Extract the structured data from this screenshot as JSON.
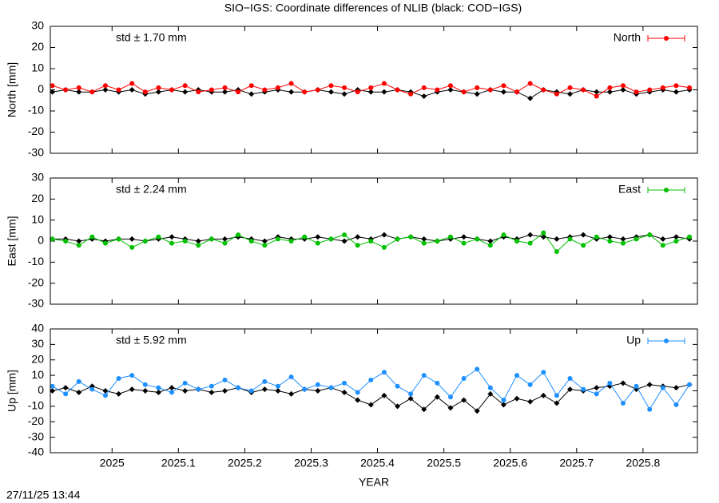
{
  "timestamp": "27/11/25 13:44",
  "chart_data": [
    {
      "type": "line",
      "title": "SIO−IGS: Coordinate differences of NLIB (black: COD−IGS)",
      "ylabel": "North [mm]",
      "annotation": "std ± 1.70 mm",
      "legend": "top right",
      "x": [
        2024.91,
        2024.93,
        2024.95,
        2024.97,
        2024.99,
        2025.01,
        2025.03,
        2025.05,
        2025.07,
        2025.09,
        2025.11,
        2025.13,
        2025.15,
        2025.17,
        2025.19,
        2025.21,
        2025.23,
        2025.25,
        2025.27,
        2025.29,
        2025.31,
        2025.33,
        2025.35,
        2025.37,
        2025.39,
        2025.41,
        2025.43,
        2025.45,
        2025.47,
        2025.49,
        2025.51,
        2025.53,
        2025.55,
        2025.57,
        2025.59,
        2025.61,
        2025.63,
        2025.65,
        2025.67,
        2025.69,
        2025.71,
        2025.73,
        2025.75,
        2025.77,
        2025.79,
        2025.81,
        2025.83,
        2025.85,
        2025.87
      ],
      "xlim": [
        2024.907,
        2025.882
      ],
      "xticks": [
        2025,
        2025.1,
        2025.2,
        2025.3,
        2025.4,
        2025.5,
        2025.6,
        2025.7,
        2025.8
      ],
      "ylim": [
        -30,
        30
      ],
      "yticks": [
        -30,
        -20,
        -10,
        0,
        10,
        20,
        30
      ],
      "series": [
        {
          "color": "#000000",
          "values": [
            -1,
            0,
            -1,
            -1,
            0,
            -1,
            0,
            -2,
            -1,
            0,
            -1,
            0,
            -1,
            -1,
            0,
            -2,
            -1,
            0,
            -1,
            -1,
            0,
            -1,
            -2,
            0,
            -1,
            -1,
            0,
            -1,
            -3,
            -1,
            0,
            -1,
            -2,
            0,
            -1,
            -1,
            -4,
            0,
            -1,
            -2,
            0,
            -1,
            -1,
            0,
            -2,
            -1,
            0,
            -1,
            0
          ]
        },
        {
          "name": "North",
          "color": "#ff0000",
          "values": [
            2,
            0,
            1,
            -1,
            2,
            0,
            3,
            -1,
            1,
            0,
            2,
            -1,
            0,
            1,
            -1,
            2,
            0,
            1,
            3,
            -1,
            0,
            2,
            1,
            -1,
            1,
            3,
            0,
            -2,
            1,
            0,
            2,
            -1,
            1,
            0,
            2,
            -1,
            3,
            0,
            -2,
            1,
            0,
            -3,
            1,
            2,
            -1,
            0,
            1,
            2,
            1
          ]
        }
      ]
    },
    {
      "type": "line",
      "ylabel": "East [mm]",
      "annotation": "std ± 2.24 mm",
      "legend": "top right",
      "x": [
        2024.91,
        2024.93,
        2024.95,
        2024.97,
        2024.99,
        2025.01,
        2025.03,
        2025.05,
        2025.07,
        2025.09,
        2025.11,
        2025.13,
        2025.15,
        2025.17,
        2025.19,
        2025.21,
        2025.23,
        2025.25,
        2025.27,
        2025.29,
        2025.31,
        2025.33,
        2025.35,
        2025.37,
        2025.39,
        2025.41,
        2025.43,
        2025.45,
        2025.47,
        2025.49,
        2025.51,
        2025.53,
        2025.55,
        2025.57,
        2025.59,
        2025.61,
        2025.63,
        2025.65,
        2025.67,
        2025.69,
        2025.71,
        2025.73,
        2025.75,
        2025.77,
        2025.79,
        2025.81,
        2025.83,
        2025.85,
        2025.87
      ],
      "xlim": [
        2024.907,
        2025.882
      ],
      "xticks": [
        2025,
        2025.1,
        2025.2,
        2025.3,
        2025.4,
        2025.5,
        2025.6,
        2025.7,
        2025.8
      ],
      "ylim": [
        -30,
        30
      ],
      "yticks": [
        -30,
        -20,
        -10,
        0,
        10,
        20,
        30
      ],
      "series": [
        {
          "color": "#000000",
          "values": [
            1,
            1,
            0,
            1,
            0,
            1,
            1,
            0,
            1,
            2,
            1,
            0,
            1,
            1,
            2,
            1,
            0,
            2,
            1,
            1,
            2,
            1,
            0,
            2,
            1,
            3,
            1,
            2,
            1,
            0,
            1,
            2,
            1,
            0,
            2,
            1,
            3,
            2,
            1,
            2,
            3,
            1,
            2,
            1,
            2,
            3,
            1,
            2,
            1
          ]
        },
        {
          "name": "East",
          "color": "#00c000",
          "values": [
            1,
            0,
            -2,
            2,
            -1,
            1,
            -3,
            0,
            2,
            -1,
            0,
            -2,
            1,
            -1,
            3,
            0,
            -2,
            1,
            0,
            2,
            -1,
            1,
            3,
            -2,
            0,
            -3,
            1,
            2,
            -1,
            0,
            2,
            -1,
            1,
            -2,
            3,
            0,
            -1,
            4,
            -5,
            1,
            -2,
            2,
            0,
            -1,
            1,
            3,
            -2,
            0,
            2
          ]
        }
      ]
    },
    {
      "type": "line",
      "ylabel": "Up [mm]",
      "xlabel": "YEAR",
      "annotation": "std ± 5.92 mm",
      "legend": "top right",
      "x": [
        2024.91,
        2024.93,
        2024.95,
        2024.97,
        2024.99,
        2025.01,
        2025.03,
        2025.05,
        2025.07,
        2025.09,
        2025.11,
        2025.13,
        2025.15,
        2025.17,
        2025.19,
        2025.21,
        2025.23,
        2025.25,
        2025.27,
        2025.29,
        2025.31,
        2025.33,
        2025.35,
        2025.37,
        2025.39,
        2025.41,
        2025.43,
        2025.45,
        2025.47,
        2025.49,
        2025.51,
        2025.53,
        2025.55,
        2025.57,
        2025.59,
        2025.61,
        2025.63,
        2025.65,
        2025.67,
        2025.69,
        2025.71,
        2025.73,
        2025.75,
        2025.77,
        2025.79,
        2025.81,
        2025.83,
        2025.85,
        2025.87
      ],
      "xlim": [
        2024.907,
        2025.882
      ],
      "xticks": [
        2025,
        2025.1,
        2025.2,
        2025.3,
        2025.4,
        2025.5,
        2025.6,
        2025.7,
        2025.8
      ],
      "ylim": [
        -40,
        40
      ],
      "yticks": [
        -40,
        -30,
        -20,
        -10,
        0,
        10,
        20,
        30,
        40
      ],
      "series": [
        {
          "color": "#000000",
          "values": [
            0,
            2,
            -1,
            3,
            0,
            -2,
            1,
            0,
            -1,
            2,
            0,
            1,
            -1,
            0,
            2,
            -1,
            1,
            0,
            -2,
            1,
            0,
            2,
            -1,
            -6,
            -9,
            -3,
            -10,
            -5,
            -12,
            -4,
            -11,
            -6,
            -13,
            -2,
            -9,
            -5,
            -7,
            -3,
            -8,
            1,
            0,
            2,
            3,
            5,
            1,
            4,
            3,
            2,
            4
          ]
        },
        {
          "name": "Up",
          "color": "#1e90ff",
          "values": [
            3,
            -2,
            6,
            1,
            -3,
            8,
            10,
            4,
            2,
            -1,
            5,
            1,
            3,
            7,
            2,
            0,
            6,
            3,
            9,
            1,
            4,
            2,
            5,
            -1,
            7,
            12,
            3,
            -2,
            10,
            5,
            -4,
            8,
            14,
            2,
            -6,
            10,
            4,
            12,
            -3,
            8,
            1,
            -2,
            5,
            -8,
            3,
            -12,
            2,
            -9,
            4
          ]
        }
      ]
    }
  ]
}
